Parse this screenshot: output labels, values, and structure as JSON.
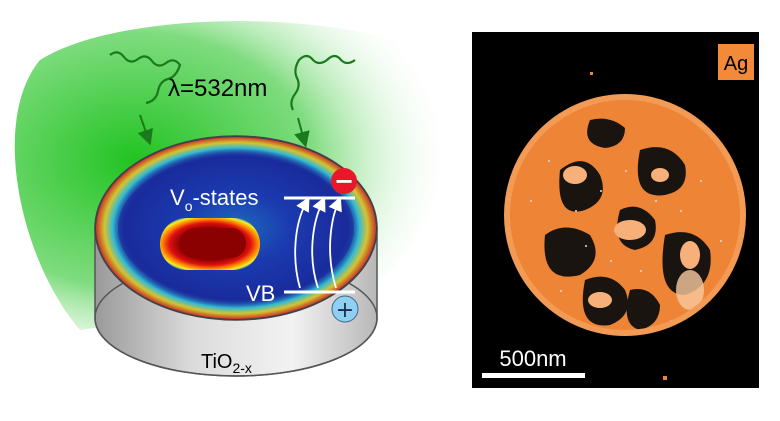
{
  "left_panel": {
    "wavelength_label": "λ=532nm",
    "vo_states_label": {
      "main": "V",
      "sub": "o",
      "rest": "-states"
    },
    "vb_label": "VB",
    "material_label": {
      "main": "TiO",
      "sub": "2-x"
    },
    "minus_sign": "−",
    "plus_sign": "+",
    "colors": {
      "light_cone": "#33cc33",
      "disk_top": "#1a2a9a",
      "disk_side": "#cfcfcf",
      "hot_center": "#8b0000",
      "electron": "#e8182a",
      "hole": "#8ecff2"
    }
  },
  "right_panel": {
    "element_label": "Ag",
    "scale_bar_label": "500nm",
    "colors": {
      "background": "#000000",
      "particle": "#f28a3a",
      "badge": "#f28a3a"
    }
  }
}
